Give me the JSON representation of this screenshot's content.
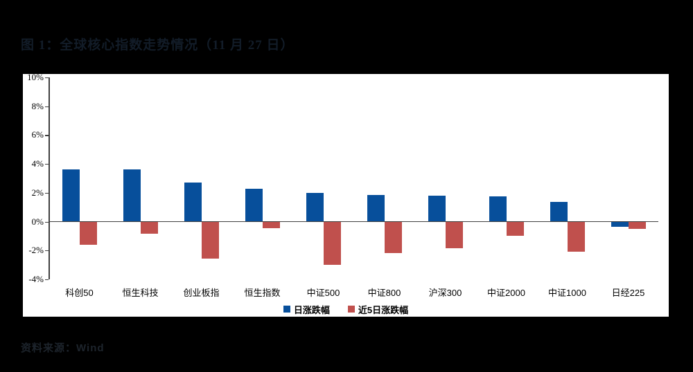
{
  "figure": {
    "title": "图 1：全球核心指数走势情况（11 月 27 日）",
    "source_note": "资料来源：Wind"
  },
  "chart_data": {
    "type": "bar",
    "title": "图 1：全球核心指数走势情况（11 月 27 日）",
    "categories": [
      "科创50",
      "恒生科技",
      "创业板指",
      "恒生指数",
      "中证500",
      "中证800",
      "沪深300",
      "中证2000",
      "中证1000",
      "日经225"
    ],
    "series": [
      {
        "name": "日涨跌幅",
        "color": "#074F9B",
        "values": [
          3.6,
          3.6,
          2.7,
          2.3,
          2.0,
          1.85,
          1.8,
          1.75,
          1.35,
          -0.35
        ]
      },
      {
        "name": "近5日涨跌幅",
        "color": "#C0504D",
        "values": [
          -1.6,
          -0.85,
          -2.55,
          -0.45,
          -3.0,
          -2.2,
          -1.85,
          -1.0,
          -2.1,
          -0.5
        ]
      }
    ],
    "xlabel": "",
    "ylabel": "",
    "ylim": [
      -4,
      10
    ],
    "ytick_step": 2,
    "ytick_labels": [
      "10%",
      "8%",
      "6%",
      "4%",
      "2%",
      "0%",
      "-2%",
      "-4%"
    ],
    "grid": false,
    "legend_position": "bottom",
    "axis_color": "#3f3f3f",
    "plot_background": "#ffffff",
    "page_background": "#000000"
  }
}
